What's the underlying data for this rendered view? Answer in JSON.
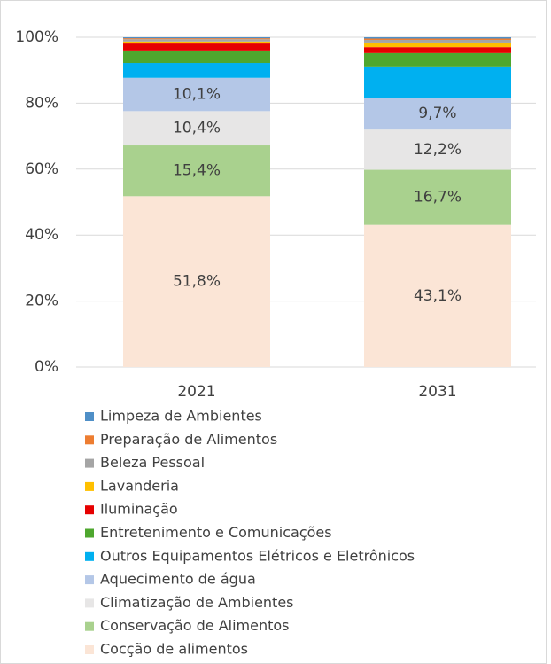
{
  "chart_data": {
    "type": "stacked_bar",
    "categories": [
      "2021",
      "2031"
    ],
    "series": [
      {
        "name": "Limpeza de Ambientes",
        "color": "#4f8fc7",
        "values": [
          0.3,
          0.4
        ]
      },
      {
        "name": "Preparação de Alimentos",
        "color": "#ed7d31",
        "values": [
          0.3,
          0.4
        ]
      },
      {
        "name": "Beleza Pessoal",
        "color": "#a5a5a5",
        "values": [
          0.7,
          0.8
        ]
      },
      {
        "name": "Lavanderia",
        "color": "#ffc000",
        "values": [
          0.6,
          1.4
        ]
      },
      {
        "name": "Iluminação",
        "color": "#e60000",
        "values": [
          2.1,
          1.8
        ]
      },
      {
        "name": "Entretenimento e Comunicações",
        "color": "#4ea72e",
        "values": [
          3.8,
          4.3
        ]
      },
      {
        "name": "Outros Equipamentos Elétricos e Eletrônicos",
        "color": "#00b0f0",
        "values": [
          4.5,
          9.2
        ]
      },
      {
        "name": "Aquecimento de água",
        "color": "#b4c7e7",
        "values": [
          10.1,
          9.7
        ],
        "value_labels": [
          "10,1%",
          "9,7%"
        ]
      },
      {
        "name": "Climatização de Ambientes",
        "color": "#e7e6e6",
        "values": [
          10.4,
          12.2
        ],
        "value_labels": [
          "10,4%",
          "12,2%"
        ]
      },
      {
        "name": "Conservação de Alimentos",
        "color": "#a9d18e",
        "values": [
          15.4,
          16.7
        ],
        "value_labels": [
          "15,4%",
          "16,7%"
        ]
      },
      {
        "name": "Cocção de alimentos",
        "color": "#fbe5d6",
        "values": [
          51.8,
          43.1
        ],
        "value_labels": [
          "51,8%",
          "43,1%"
        ]
      }
    ],
    "ylim": [
      0,
      100
    ],
    "yticks": [
      {
        "value": 0,
        "label": "0%"
      },
      {
        "value": 20,
        "label": "20%"
      },
      {
        "value": 40,
        "label": "40%"
      },
      {
        "value": 60,
        "label": "60%"
      },
      {
        "value": 80,
        "label": "80%"
      },
      {
        "value": 100,
        "label": "100%"
      }
    ],
    "grid": true
  }
}
